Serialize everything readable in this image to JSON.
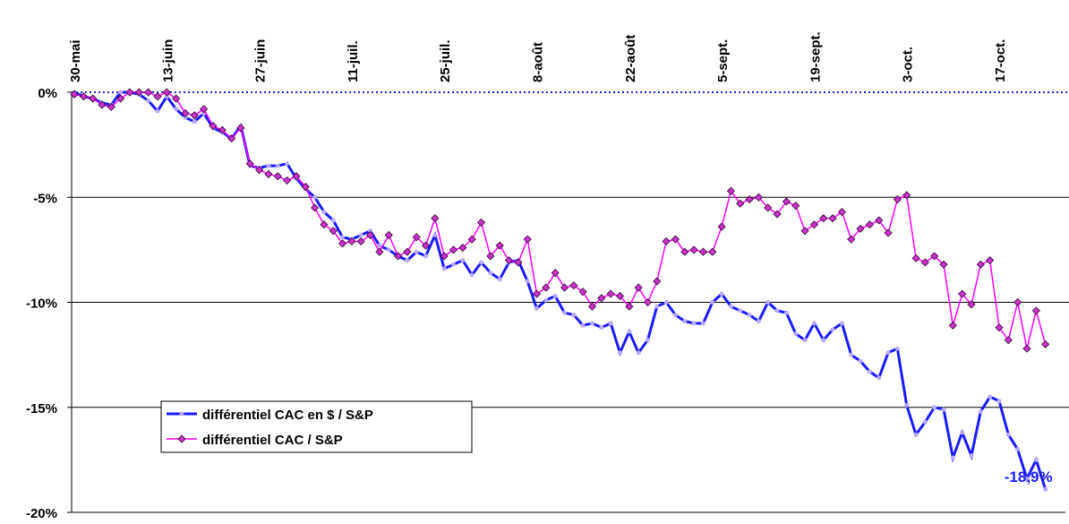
{
  "chart_data": {
    "type": "line",
    "categories": [
      "30-mai",
      null,
      null,
      null,
      null,
      null,
      null,
      null,
      null,
      null,
      "13-juin",
      null,
      null,
      null,
      null,
      null,
      null,
      null,
      null,
      null,
      "27-juin",
      null,
      null,
      null,
      null,
      null,
      null,
      null,
      null,
      null,
      "11-juil.",
      null,
      null,
      null,
      null,
      null,
      null,
      null,
      null,
      null,
      "25-juil.",
      null,
      null,
      null,
      null,
      null,
      null,
      null,
      null,
      null,
      "8-août",
      null,
      null,
      null,
      null,
      null,
      null,
      null,
      null,
      null,
      "22-août",
      null,
      null,
      null,
      null,
      null,
      null,
      null,
      null,
      null,
      "5-sept.",
      null,
      null,
      null,
      null,
      null,
      null,
      null,
      null,
      null,
      "19-sept.",
      null,
      null,
      null,
      null,
      null,
      null,
      null,
      null,
      null,
      "3-oct.",
      null,
      null,
      null,
      null,
      null,
      null,
      null,
      null,
      null,
      "17-oct.",
      null,
      null,
      null,
      null,
      null
    ],
    "series": [
      {
        "name": "différentiel CAC en $ / S&P",
        "color": "#1a1aff",
        "marker_color": "#b9a8ff",
        "marker": "circle",
        "values": [
          0,
          -0.2,
          -0.3,
          -0.5,
          -0.6,
          0,
          0,
          -0.1,
          -0.4,
          -0.9,
          -0.2,
          -0.8,
          -1.2,
          -1.4,
          -1.0,
          -1.7,
          -1.9,
          -2.2,
          -1.6,
          -3.5,
          -3.6,
          -3.5,
          -3.5,
          -3.4,
          -4.1,
          -4.6,
          -5.0,
          -5.7,
          -6.1,
          -6.9,
          -7.0,
          -6.8,
          -6.6,
          -7.3,
          -7.5,
          -7.8,
          -8.0,
          -7.6,
          -7.8,
          -6.8,
          -8.4,
          -8.2,
          -8.0,
          -8.7,
          -8.1,
          -8.6,
          -8.9,
          -8.1,
          -8.0,
          -9.0,
          -10.3,
          -9.9,
          -9.7,
          -10.5,
          -10.6,
          -11.1,
          -11.0,
          -11.2,
          -11.0,
          -12.4,
          -11.4,
          -12.4,
          -11.8,
          -10.2,
          -10.0,
          -10.6,
          -10.9,
          -11.0,
          -11.0,
          -10.0,
          -9.6,
          -10.2,
          -10.4,
          -10.6,
          -10.9,
          -10.0,
          -10.4,
          -10.5,
          -11.5,
          -11.8,
          -11.0,
          -11.8,
          -11.3,
          -11.0,
          -12.5,
          -12.8,
          -13.3,
          -13.6,
          -12.4,
          -12.2,
          -14.9,
          -16.3,
          -15.7,
          -15.0,
          -15.1,
          -17.4,
          -16.2,
          -17.3,
          -15.2,
          -14.5,
          -14.7,
          -16.3,
          -17.0,
          -18.4,
          -17.5,
          -18.9
        ]
      },
      {
        "name": "différentiel CAC / S&P",
        "color": "#ff00ff",
        "marker_color": "#cc33cc",
        "marker": "diamond",
        "values": [
          -0.1,
          -0.2,
          -0.3,
          -0.6,
          -0.7,
          -0.3,
          0,
          0,
          0,
          -0.2,
          0,
          -0.3,
          -1.0,
          -1.1,
          -0.8,
          -1.6,
          -1.8,
          -2.2,
          -1.7,
          -3.4,
          -3.7,
          -3.9,
          -4.0,
          -4.2,
          -4.0,
          -4.5,
          -5.5,
          -6.3,
          -6.6,
          -7.2,
          -7.1,
          -7.1,
          -6.8,
          -7.6,
          -6.8,
          -7.8,
          -7.6,
          -6.9,
          -7.3,
          -6.0,
          -7.8,
          -7.5,
          -7.4,
          -7.0,
          -6.2,
          -7.8,
          -7.3,
          -8.0,
          -8.1,
          -7.0,
          -9.6,
          -9.3,
          -8.6,
          -9.3,
          -9.2,
          -9.5,
          -10.2,
          -9.8,
          -9.6,
          -9.7,
          -10.2,
          -9.3,
          -10.0,
          -9.0,
          -7.1,
          -7.0,
          -7.6,
          -7.5,
          -7.6,
          -7.6,
          -6.4,
          -4.7,
          -5.3,
          -5.1,
          -5.0,
          -5.5,
          -5.8,
          -5.2,
          -5.4,
          -6.6,
          -6.3,
          -6.0,
          -6.0,
          -5.7,
          -7.0,
          -6.5,
          -6.3,
          -6.1,
          -6.7,
          -5.1,
          -4.9,
          -7.9,
          -8.1,
          -7.8,
          -8.2,
          -11.1,
          -9.6,
          -10.1,
          -8.2,
          -8.0,
          -11.2,
          -11.8,
          -10.0,
          -12.2,
          -10.4,
          -12.0
        ]
      }
    ],
    "ylim": [
      -20,
      0
    ],
    "yticks": [
      {
        "value": 0,
        "label": "0%"
      },
      {
        "value": -5,
        "label": "-5%"
      },
      {
        "value": -10,
        "label": "-10%"
      },
      {
        "value": -15,
        "label": "-15%"
      },
      {
        "value": -20,
        "label": "-20%"
      }
    ],
    "grid": true,
    "legend_position": "lower left",
    "annotation": {
      "text": "-18,9%",
      "series": 0,
      "index": 105
    }
  }
}
